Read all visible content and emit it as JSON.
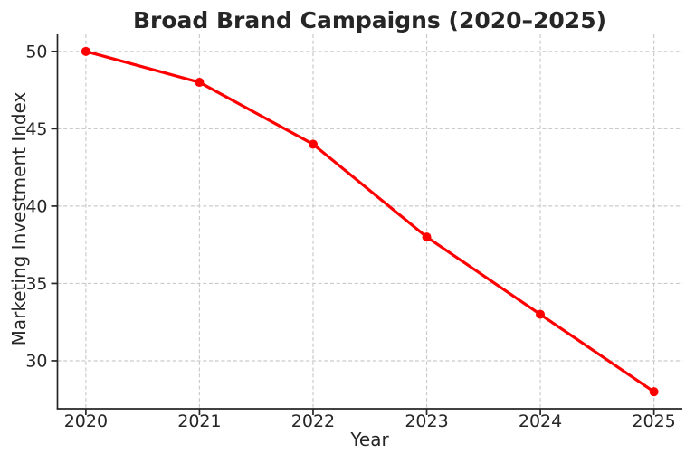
{
  "chart_data": {
    "type": "line",
    "title": "Broad Brand Campaigns (2020–2025)",
    "xlabel": "Year",
    "ylabel": "Marketing Investment Index",
    "x": [
      2020,
      2021,
      2022,
      2023,
      2024,
      2025
    ],
    "series": [
      {
        "name": "Marketing Investment Index",
        "values": [
          50,
          48,
          44,
          38,
          33,
          28
        ],
        "color": "#ff0000",
        "marker": "circle",
        "line_width": 3.2,
        "marker_radius": 5
      }
    ],
    "xtick_labels": [
      "2020",
      "2021",
      "2022",
      "2023",
      "2024",
      "2025"
    ],
    "xtick_values": [
      2020,
      2021,
      2022,
      2023,
      2024,
      2025
    ],
    "ytick_labels": [
      "30",
      "35",
      "40",
      "45",
      "50"
    ],
    "ytick_values": [
      30,
      35,
      40,
      45,
      50
    ],
    "xlim": [
      2019.75,
      2025.25
    ],
    "ylim": [
      26.9,
      51.1
    ],
    "grid": true,
    "grid_style": "dashed",
    "grid_color": "#cbcbcb",
    "axis_color": "#262626",
    "text_color": "#262626",
    "background_color": "#ffffff",
    "legend_position": "none",
    "spines": [
      "left",
      "bottom"
    ]
  }
}
